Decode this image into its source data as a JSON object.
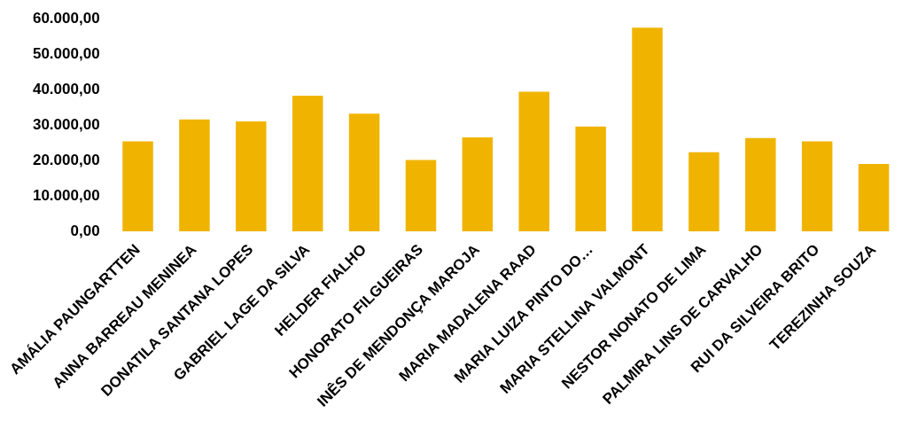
{
  "chart_data": {
    "type": "bar",
    "categories": [
      "AMÁLIA PAUNGARTTEN",
      "ANNA BARREAU MENINEA",
      "DONATILA SANTANA LOPES",
      "GABRIEL LAGE DA SILVA",
      "HELDER FIALHO",
      "HONORATO FILGUEIRAS",
      "INÊS DE MENDONÇA MAROJA",
      "MARIA MADALENA RAAD",
      "MARIA LUIZA PINTO DO…",
      "MARIA STELLINA VALMONT",
      "NESTOR NONATO DE LIMA",
      "PALMIRA LINS DE CARVALHO",
      "RUI DA SILVEIRA BRITO",
      "TEREZINHA SOUZA"
    ],
    "values": [
      25400,
      31600,
      31000,
      38300,
      33200,
      20100,
      26500,
      39400,
      29600,
      57500,
      22300,
      26300,
      25400,
      19000
    ],
    "color": "#f0b400",
    "ylim": [
      0,
      60000
    ],
    "yticks": [
      {
        "value": 0,
        "label": "0,00"
      },
      {
        "value": 10000,
        "label": "10.000,00"
      },
      {
        "value": 20000,
        "label": "20.000,00"
      },
      {
        "value": 30000,
        "label": "30.000,00"
      },
      {
        "value": 40000,
        "label": "40.000,00"
      },
      {
        "value": 50000,
        "label": "50.000,00"
      },
      {
        "value": 60000,
        "label": "60.000,00"
      }
    ]
  }
}
